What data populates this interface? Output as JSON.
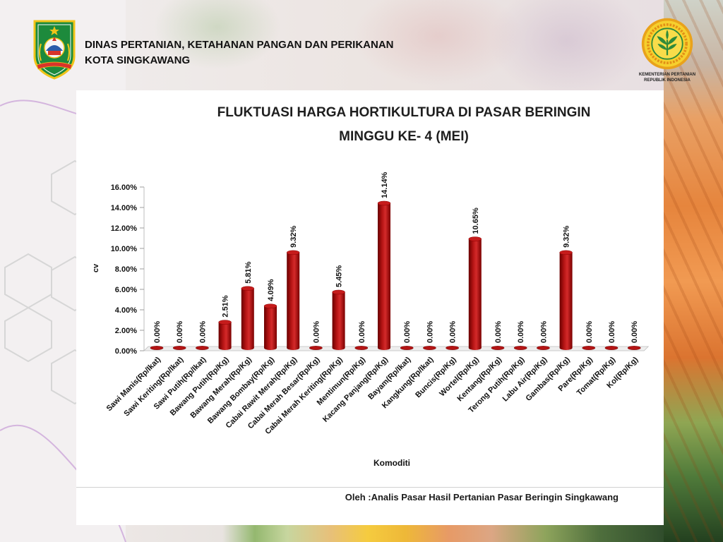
{
  "header": {
    "agency_line1": "DINAS PERTANIAN, KETAHANAN PANGAN DAN PERIKANAN",
    "agency_line2": "KOTA SINGKAWANG"
  },
  "logos": {
    "left_icon": "singkawang-city-emblem-icon",
    "right_icon": "kementan-logo-icon",
    "right_caption_line1": "KEMENTERIAN PERTANIAN",
    "right_caption_line2": "REPUBLIK INDONESIA"
  },
  "colors": {
    "bar": "#b51414",
    "bar_dark": "#6a0000",
    "title": "#1e1e1e",
    "panel": "#ffffff"
  },
  "chart_data": {
    "type": "bar",
    "title_lines": [
      "FLUKTUASI HARGA HORTIKULTURA DI PASAR BERINGIN",
      "MINGGU KE- 4 (MEI)"
    ],
    "xlabel": "Komoditi",
    "ylabel": "cv",
    "categories": [
      "Sawi Manis(Rp/Ikat)",
      "Sawi Keriting(Rp/Ikat)",
      "Sawi Putih(Rp/Ikat)",
      "Bawang Putih(Rp/Kg)",
      "Bawang Merah(Rp/Kg)",
      "Bawang Bombay(Rp/Kg)",
      "Cabai Rawit Merah(Rp/Kg)",
      "Cabai Merah Besar(Rp/Kg)",
      "Cabai Merah Keriting(Rp/Kg)",
      "Mentimun(Rp/Kg)",
      "Kacang Panjang(Rp/Kg)",
      "Bayam(Rp/Ikat)",
      "Kangkung(Rp/Ikat)",
      "Buncis(Rp/Kg)",
      "Wortel(Rp/Kg)",
      "Kentang(Rp/Kg)",
      "Terong Putih(Rp/Kg)",
      "Labu Air(Rp/Kg)",
      "Gambas(Rp/Kg)",
      "Pare(Rp/Kg)",
      "Tomat(Rp/Kg)",
      "Kol(Rp/Kg)"
    ],
    "values": [
      0,
      0,
      0,
      2.51,
      5.81,
      4.09,
      9.32,
      0,
      5.45,
      0,
      14.14,
      0,
      0,
      0,
      10.65,
      0,
      0,
      0,
      9.32,
      0,
      0,
      0
    ],
    "data_labels": [
      "0.00%",
      "0.00%",
      "0.00%",
      "2.51%",
      "5.81%",
      "4.09%",
      "9.32%",
      "0.00%",
      "5.45%",
      "0.00%",
      "14.14%",
      "0.00%",
      "0.00%",
      "0.00%",
      "10.65%",
      "0.00%",
      "0.00%",
      "0.00%",
      "9.32%",
      "0.00%",
      "0.00%",
      "0.00%"
    ],
    "yticks": [
      0,
      2,
      4,
      6,
      8,
      10,
      12,
      14,
      16
    ],
    "ytick_labels": [
      "0.00%",
      "2.00%",
      "4.00%",
      "6.00%",
      "8.00%",
      "10.00%",
      "12.00%",
      "14.00%",
      "16.00%"
    ],
    "ylim": [
      0,
      16
    ],
    "grid": false
  },
  "footer": {
    "source": "Oleh :Analis Pasar Hasil Pertanian Pasar Beringin Singkawang"
  }
}
